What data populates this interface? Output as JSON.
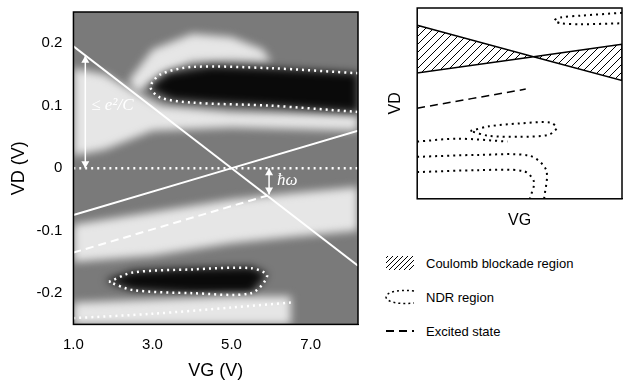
{
  "chart_data": [
    {
      "type": "scatter",
      "x_label": "VG (V)",
      "y_label": "VD (V)",
      "xlim": [
        1.0,
        8.2
      ],
      "xticks": [
        {
          "value": 1,
          "label": "1.0"
        },
        {
          "value": 3,
          "label": "3.0"
        },
        {
          "value": 5,
          "label": "5.0"
        },
        {
          "value": 7,
          "label": "7.0"
        }
      ],
      "ylim": [
        -0.25,
        0.25
      ],
      "yticks": [
        -0.2,
        -0.1,
        0,
        0.1,
        0.2
      ],
      "grid": false,
      "series": [
        {
          "type": "area",
          "color": "#e6e6e6",
          "x": [
            2.4,
            3.0,
            4.0,
            5.0,
            5.8,
            6.0,
            5.0,
            4.0,
            3.2,
            2.6
          ],
          "values": [
            0.14,
            0.19,
            0.215,
            0.21,
            0.19,
            0.17,
            0.172,
            0.17,
            0.15,
            0.12
          ]
        },
        {
          "type": "area",
          "color": "#e6e6e6",
          "x": [
            1.0,
            1.8,
            2.6,
            3.2,
            5.0,
            8.2,
            8.2,
            5.0,
            3.0,
            1.8,
            1.0
          ],
          "values": [
            0.16,
            0.15,
            0.12,
            0.1,
            0.09,
            0.085,
            0.06,
            0.065,
            0.06,
            0.03,
            0.02
          ]
        },
        {
          "type": "area",
          "color": "#0a0a0a",
          "x": [
            2.9,
            3.4,
            4.5,
            6.0,
            8.2,
            8.2,
            6.0,
            4.5,
            3.5
          ],
          "values": [
            0.128,
            0.152,
            0.163,
            0.16,
            0.152,
            0.09,
            0.1,
            0.105,
            0.11
          ]
        },
        {
          "type": "area",
          "color": "#e6e6e6",
          "x": [
            1.0,
            3.0,
            5.0,
            6.5,
            8.2,
            8.2,
            6.5,
            5.0,
            3.0,
            1.0
          ],
          "values": [
            -0.09,
            -0.07,
            -0.05,
            -0.04,
            -0.03,
            -0.1,
            -0.11,
            -0.12,
            -0.14,
            -0.15
          ]
        },
        {
          "type": "area",
          "color": "#0a0a0a",
          "x": [
            1.8,
            2.5,
            4.0,
            5.5,
            5.9,
            5.5,
            4.0,
            2.5
          ],
          "values": [
            -0.18,
            -0.165,
            -0.16,
            -0.158,
            -0.17,
            -0.2,
            -0.2,
            -0.195
          ]
        },
        {
          "type": "area",
          "color": "#e6e6e6",
          "x": [
            1.0,
            3.0,
            5.0,
            6.5,
            6.5,
            5.0,
            3.0,
            1.0
          ],
          "values": [
            -0.215,
            -0.21,
            -0.205,
            -0.205,
            -0.25,
            -0.25,
            -0.25,
            -0.25
          ]
        },
        {
          "type": "line",
          "color": "#ffffff",
          "line_style": "solid",
          "x": [
            1.0,
            8.2
          ],
          "values": [
            0.195,
            -0.156
          ]
        },
        {
          "type": "line",
          "color": "#ffffff",
          "line_style": "solid",
          "x": [
            1.0,
            8.2
          ],
          "values": [
            -0.075,
            0.06
          ]
        },
        {
          "type": "line",
          "color": "#ffffff",
          "line_style": "dashed",
          "x": [
            1.0,
            5.9
          ],
          "values": [
            -0.135,
            -0.044
          ]
        },
        {
          "type": "line",
          "color": "#ffffff",
          "line_style": "dotted",
          "x": [
            1.0,
            8.2
          ],
          "values": [
            0,
            0
          ]
        },
        {
          "type": "line",
          "color": "#ffffff",
          "line_style": "dotted",
          "x": [
            8.2,
            6.0,
            4.0,
            3.2,
            2.95,
            3.2,
            4.0,
            6.0,
            8.2
          ],
          "values": [
            0.152,
            0.16,
            0.162,
            0.15,
            0.13,
            0.113,
            0.105,
            0.1,
            0.09
          ]
        },
        {
          "type": "line",
          "color": "#ffffff",
          "line_style": "dotted",
          "x": [
            1.9,
            2.5,
            4.0,
            5.5,
            5.9,
            5.5,
            4.0,
            2.5,
            1.9
          ],
          "values": [
            -0.182,
            -0.167,
            -0.162,
            -0.16,
            -0.172,
            -0.2,
            -0.2,
            -0.195,
            -0.182
          ]
        },
        {
          "type": "line",
          "color": "#ffffff",
          "line_style": "dotted",
          "x": [
            1.0,
            3.0,
            5.0,
            6.5
          ],
          "values": [
            -0.24,
            -0.233,
            -0.223,
            -0.215
          ]
        }
      ],
      "arrows": [
        {
          "x": 1.3,
          "y": [
            0.18,
            0
          ]
        },
        {
          "x": 5.95,
          "y": [
            0,
            -0.042
          ]
        }
      ],
      "annotations": [
        {
          "text": "≤ e²/C",
          "x": 1.45,
          "y": 0.1
        },
        {
          "text": "ħω",
          "x": 6.15,
          "y": -0.02
        }
      ]
    },
    {
      "type": "scatter",
      "x_label": "VG",
      "y_label": "VD",
      "xlim": [
        0,
        10
      ],
      "ylim": [
        0,
        10
      ],
      "tick_labels": false,
      "grid": false,
      "legend": "bottom",
      "series": [
        {
          "name": "Coulomb blockade region",
          "type": "hatch",
          "color": "#000000",
          "line_style": "solid",
          "x": [
            0,
            5.68,
            0,
            null,
            5.68,
            10,
            10
          ],
          "values": [
            9.1,
            7.45,
            6.6,
            null,
            7.45,
            8.1,
            6.2
          ]
        },
        {
          "name": "NDR region",
          "type": "line",
          "color": "#000000",
          "line_style": "dotted",
          "x": [
            10,
            8,
            7.0,
            6.7,
            7.0,
            8,
            10,
            null,
            2.6,
            3.5,
            5,
            6.5,
            6.8,
            6.4,
            5,
            3.5,
            2.6,
            null,
            0,
            2,
            4.4,
            null,
            0,
            3,
            5.5,
            6.3,
            6.2,
            null,
            0,
            3,
            5.2,
            5.7,
            5.5
          ],
          "values": [
            9.75,
            9.6,
            9.5,
            9.35,
            9.2,
            9.15,
            9.2,
            null,
            3.55,
            3.8,
            3.95,
            4.0,
            3.7,
            3.35,
            3.25,
            3.3,
            3.55,
            null,
            3.0,
            3.15,
            3.0,
            null,
            2.2,
            2.3,
            2.25,
            1.5,
            0,
            null,
            1.4,
            1.5,
            1.45,
            0.9,
            0
          ]
        },
        {
          "name": "Excited state",
          "type": "line",
          "color": "#000000",
          "line_style": "dashed",
          "x": [
            0,
            5.3
          ],
          "values": [
            4.75,
            5.75
          ]
        }
      ]
    }
  ]
}
